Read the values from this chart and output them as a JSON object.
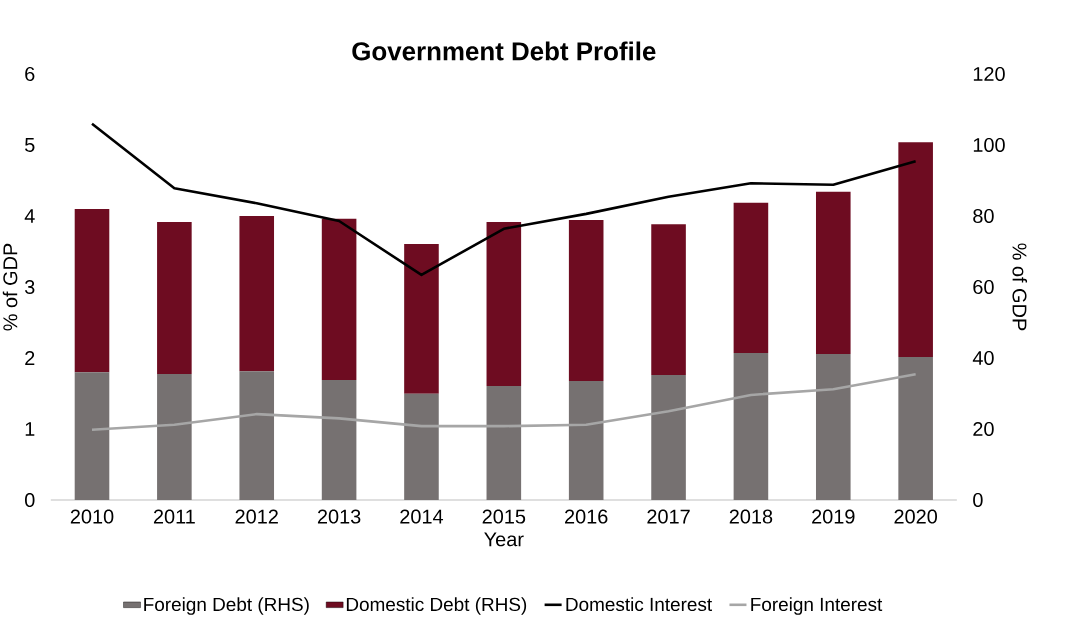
{
  "chart_data": {
    "type": "bar",
    "title": "Government Debt Profile",
    "xlabel": "Year",
    "ylabel": "% of GDP",
    "y2label": "% of GDP",
    "categories": [
      "2010",
      "2011",
      "2012",
      "2013",
      "2014",
      "2015",
      "2016",
      "2017",
      "2018",
      "2019",
      "2020"
    ],
    "stacked": true,
    "series": [
      {
        "name": "Foreign Debt (RHS)",
        "color": "#767171",
        "axis": "y2",
        "values": [
          36,
          35.5,
          36.3,
          33.8,
          29.9,
          32.1,
          33.5,
          35.2,
          41.4,
          41.1,
          40.3
        ]
      },
      {
        "name": "Domestic Debt (RHS)",
        "color": "#6e0c21",
        "axis": "y2",
        "values": [
          46,
          42.8,
          43.7,
          45.4,
          42.2,
          46.2,
          45.4,
          42.5,
          42.3,
          45.7,
          60.5
        ]
      },
      {
        "name": "Domestic Interest",
        "type": "line",
        "color": "#000000",
        "axis": "y",
        "values": [
          5.3,
          4.39,
          4.18,
          3.93,
          3.17,
          3.82,
          4.03,
          4.27,
          4.46,
          4.44,
          4.77
        ]
      },
      {
        "name": "Foreign Interest",
        "type": "line",
        "color": "#a6a6a6",
        "axis": "y",
        "values": [
          0.99,
          1.06,
          1.21,
          1.15,
          1.04,
          1.04,
          1.06,
          1.25,
          1.48,
          1.56,
          1.77
        ]
      }
    ],
    "ylim": [
      0,
      6
    ],
    "yticks": [
      0,
      1,
      2,
      3,
      4,
      5,
      6
    ],
    "y2lim": [
      0,
      120
    ],
    "y2ticks": [
      0,
      20,
      40,
      60,
      80,
      100,
      120
    ],
    "legend": "bottom",
    "grid": false,
    "marker": "none",
    "line_style": "solid"
  }
}
